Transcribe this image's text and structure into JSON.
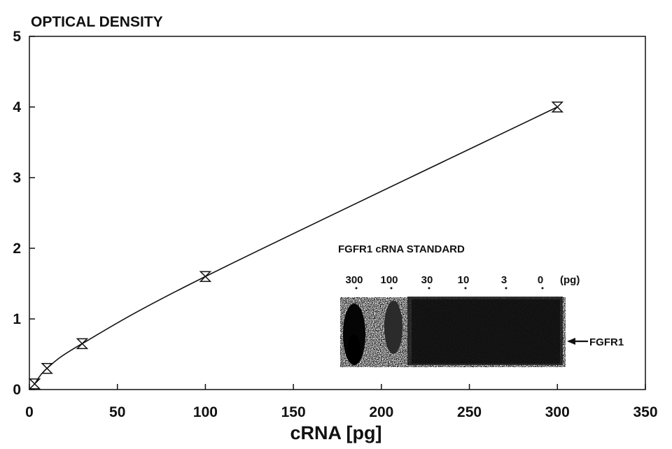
{
  "chart_data": {
    "type": "line",
    "title": "OPTICAL DENSITY",
    "xlabel": "cRNA [pg]",
    "ylabel": "",
    "xlim": [
      0,
      350
    ],
    "ylim": [
      0,
      5
    ],
    "x_ticks": [
      "0",
      "50",
      "100",
      "150",
      "200",
      "250",
      "300",
      "350"
    ],
    "y_ticks": [
      "0",
      "1",
      "2",
      "3",
      "4",
      "5"
    ],
    "grid": false,
    "series": [
      {
        "x": [
          3,
          10,
          30,
          100,
          300
        ],
        "y": [
          0.08,
          0.3,
          0.65,
          1.6,
          4.0
        ],
        "marker": "hourglass"
      }
    ],
    "inset": {
      "title": "FGFR1 cRNA STANDARD",
      "lanes": [
        "300",
        "100",
        "30",
        "10",
        "3",
        "0"
      ],
      "unit": "(pg)",
      "band_label": "FGFR1"
    }
  },
  "colors": {
    "ink": "#111111",
    "background": "#ffffff"
  }
}
